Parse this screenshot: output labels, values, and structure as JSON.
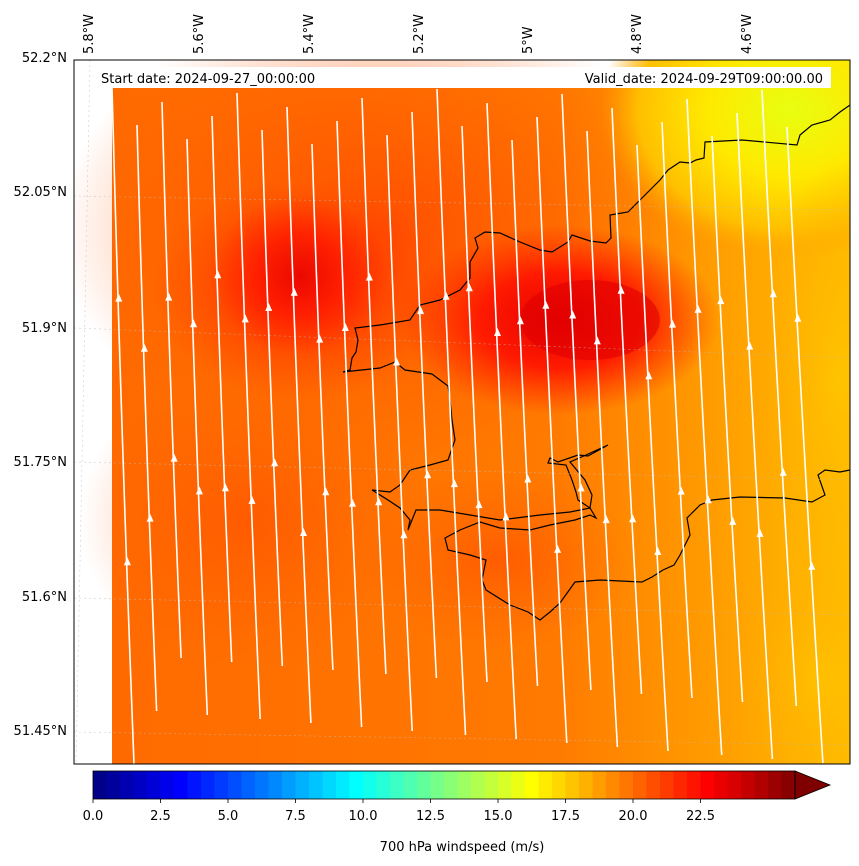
{
  "header": {
    "start_label": "Start date: 2024-09-27_00:00:00",
    "valid_label": "Valid_date: 2024-09-29T09:00:00.00"
  },
  "map": {
    "longitude_labels": [
      "5.8°W",
      "5.6°W",
      "5.4°W",
      "5.2°W",
      "5°W",
      "4.8°W",
      "4.6°W"
    ],
    "latitude_labels": [
      "52.2°N",
      "52.05°N",
      "51.9°N",
      "51.75°N",
      "51.6°N",
      "51.45°N"
    ],
    "field": "700 hPa windspeed",
    "wind_direction": "northward (streamlines pointing up)",
    "max_region": "around 51.9°N 5.0°W",
    "coastline_color": "#000000",
    "streamline_color": "#ffffff"
  },
  "colorbar": {
    "label": "700 hPa windspeed (m/s)",
    "ticks": [
      "0.0",
      "2.5",
      "5.0",
      "7.5",
      "10.0",
      "12.5",
      "15.0",
      "17.5",
      "20.0",
      "22.5"
    ],
    "range": [
      0,
      26
    ],
    "extend": "max",
    "colormap": "jet",
    "colors": [
      "#00007f",
      "#0000ff",
      "#007fff",
      "#00ffff",
      "#7fff7f",
      "#ffff00",
      "#ff7f00",
      "#ff0000",
      "#7f0000"
    ]
  }
}
